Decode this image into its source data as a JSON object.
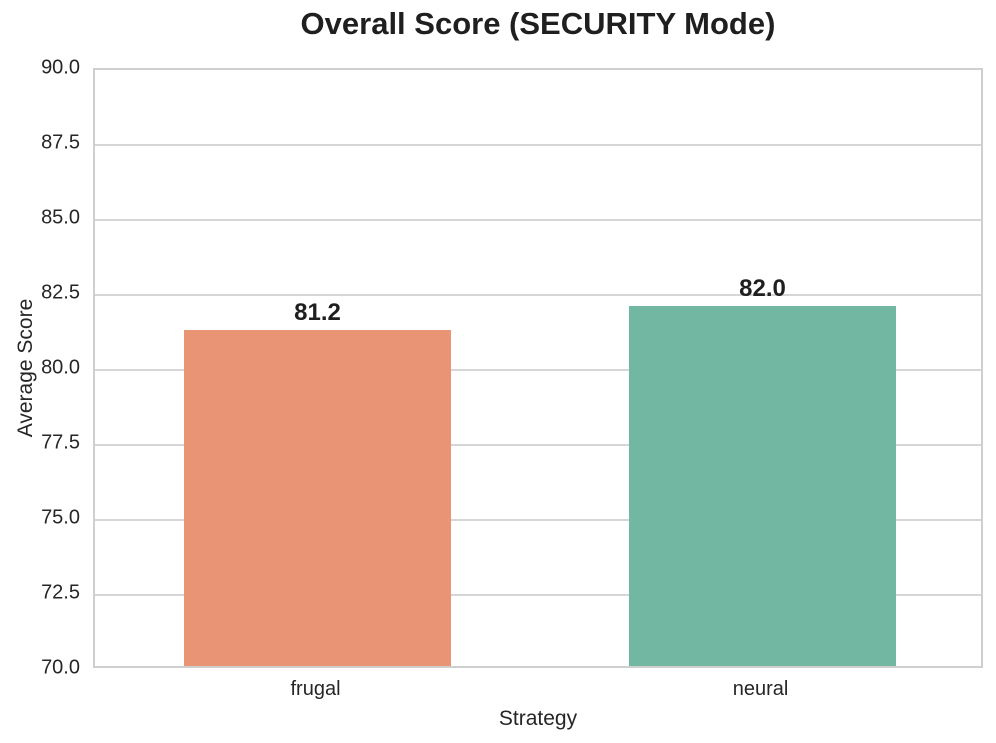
{
  "chart_data": {
    "type": "bar",
    "title": "Overall Score (SECURITY Mode)",
    "xlabel": "Strategy",
    "ylabel": "Average Score",
    "categories": [
      "frugal",
      "neural"
    ],
    "values": [
      81.2,
      82.0
    ],
    "value_labels": [
      "81.2",
      "82.0"
    ],
    "bar_colors": [
      "#e99575",
      "#72b7a2"
    ],
    "ylim": [
      70.0,
      90.0
    ],
    "ytick_step": 2.5,
    "ytick_labels": [
      "90.0",
      "87.5",
      "85.0",
      "82.5",
      "80.0",
      "77.5",
      "75.0",
      "72.5",
      "70.0"
    ],
    "grid": "horizontal-only",
    "legend_position": "none",
    "plot_background": "#ffffff",
    "grid_color": "#d6d6d6",
    "spine_color": "#cfcfcf",
    "text_color": "#262626"
  }
}
